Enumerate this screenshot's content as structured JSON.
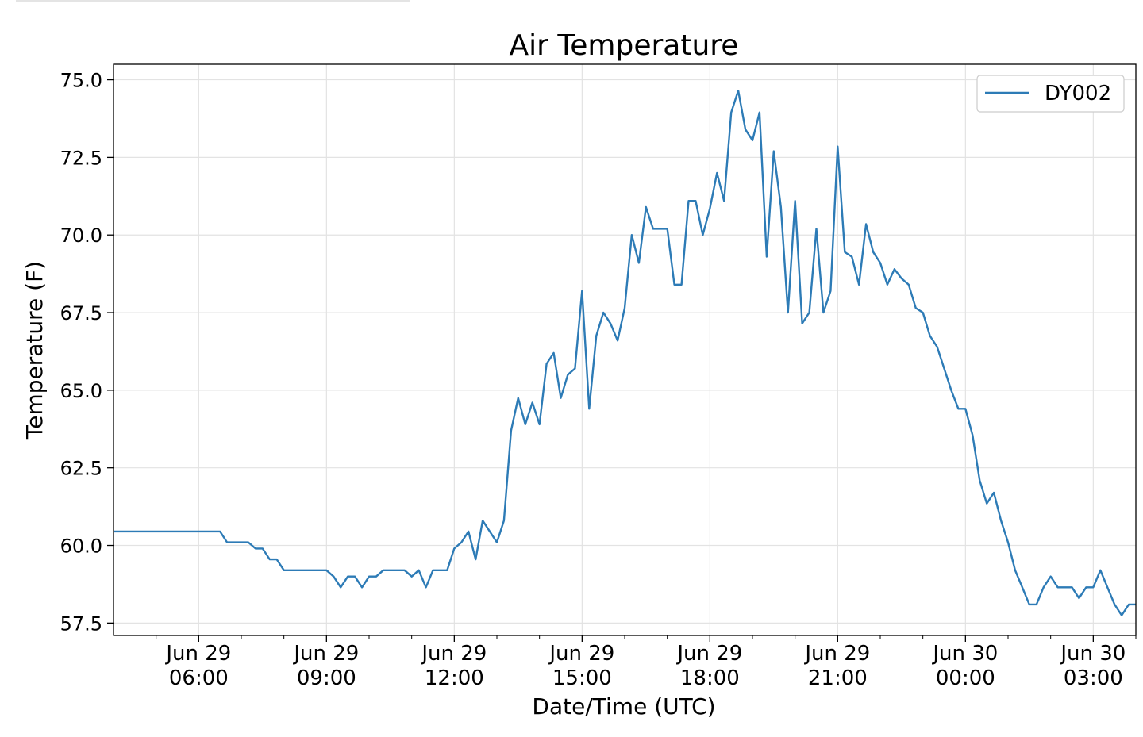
{
  "chart_data": {
    "type": "line",
    "title": "Air Temperature",
    "xlabel": "Date/Time (UTC)",
    "ylabel": "Temperature (F)",
    "ylim": [
      57.1,
      75.5
    ],
    "xlim": [
      "2020-06-29T04:00",
      "2020-06-30T04:00"
    ],
    "grid": true,
    "legend_position": "top-right",
    "yticks": [
      {
        "value": 57.5,
        "label": "57.5"
      },
      {
        "value": 60.0,
        "label": "60.0"
      },
      {
        "value": 62.5,
        "label": "62.5"
      },
      {
        "value": 65.0,
        "label": "65.0"
      },
      {
        "value": 67.5,
        "label": "67.5"
      },
      {
        "value": 70.0,
        "label": "70.0"
      },
      {
        "value": 72.5,
        "label": "72.5"
      },
      {
        "value": 75.0,
        "label": "75.0"
      }
    ],
    "xticks": [
      {
        "value": "2020-06-29T06:00",
        "line1": "Jun 29",
        "line2": "06:00"
      },
      {
        "value": "2020-06-29T09:00",
        "line1": "Jun 29",
        "line2": "09:00"
      },
      {
        "value": "2020-06-29T12:00",
        "line1": "Jun 29",
        "line2": "12:00"
      },
      {
        "value": "2020-06-29T15:00",
        "line1": "Jun 29",
        "line2": "15:00"
      },
      {
        "value": "2020-06-29T18:00",
        "line1": "Jun 29",
        "line2": "18:00"
      },
      {
        "value": "2020-06-29T21:00",
        "line1": "Jun 29",
        "line2": "21:00"
      },
      {
        "value": "2020-06-30T00:00",
        "line1": "Jun 30",
        "line2": "00:00"
      },
      {
        "value": "2020-06-30T03:00",
        "line1": "Jun 30",
        "line2": "03:00"
      }
    ],
    "xminorticks": [
      "2020-06-29T05:00",
      "2020-06-29T07:00",
      "2020-06-29T08:00",
      "2020-06-29T10:00",
      "2020-06-29T11:00",
      "2020-06-29T13:00",
      "2020-06-29T14:00",
      "2020-06-29T16:00",
      "2020-06-29T17:00",
      "2020-06-29T19:00",
      "2020-06-29T20:00",
      "2020-06-29T22:00",
      "2020-06-29T23:00",
      "2020-06-30T01:00",
      "2020-06-30T02:00",
      "2020-06-30T04:00"
    ],
    "series": [
      {
        "name": "DY002",
        "color": "#2d7bb6",
        "points": [
          [
            "2020-06-29T04:00",
            60.45
          ],
          [
            "2020-06-29T06:30",
            60.45
          ],
          [
            "2020-06-29T06:40",
            60.1
          ],
          [
            "2020-06-29T07:10",
            60.1
          ],
          [
            "2020-06-29T07:20",
            59.9
          ],
          [
            "2020-06-29T07:30",
            59.9
          ],
          [
            "2020-06-29T07:40",
            59.55
          ],
          [
            "2020-06-29T07:50",
            59.55
          ],
          [
            "2020-06-29T08:00",
            59.2
          ],
          [
            "2020-06-29T09:00",
            59.2
          ],
          [
            "2020-06-29T09:10",
            59.0
          ],
          [
            "2020-06-29T09:20",
            58.65
          ],
          [
            "2020-06-29T09:30",
            59.0
          ],
          [
            "2020-06-29T09:40",
            59.0
          ],
          [
            "2020-06-29T09:50",
            58.65
          ],
          [
            "2020-06-29T10:00",
            59.0
          ],
          [
            "2020-06-29T10:10",
            59.0
          ],
          [
            "2020-06-29T10:20",
            59.2
          ],
          [
            "2020-06-29T10:50",
            59.2
          ],
          [
            "2020-06-29T11:00",
            59.0
          ],
          [
            "2020-06-29T11:10",
            59.2
          ],
          [
            "2020-06-29T11:20",
            58.65
          ],
          [
            "2020-06-29T11:30",
            59.2
          ],
          [
            "2020-06-29T11:50",
            59.2
          ],
          [
            "2020-06-29T12:00",
            59.9
          ],
          [
            "2020-06-29T12:10",
            60.1
          ],
          [
            "2020-06-29T12:20",
            60.45
          ],
          [
            "2020-06-29T12:30",
            59.55
          ],
          [
            "2020-06-29T12:40",
            60.8
          ],
          [
            "2020-06-29T13:00",
            60.1
          ],
          [
            "2020-06-29T13:10",
            60.8
          ],
          [
            "2020-06-29T13:20",
            63.7
          ],
          [
            "2020-06-29T13:30",
            64.75
          ],
          [
            "2020-06-29T13:40",
            63.9
          ],
          [
            "2020-06-29T13:50",
            64.6
          ],
          [
            "2020-06-29T14:00",
            63.9
          ],
          [
            "2020-06-29T14:10",
            65.85
          ],
          [
            "2020-06-29T14:20",
            66.2
          ],
          [
            "2020-06-29T14:30",
            64.75
          ],
          [
            "2020-06-29T14:40",
            65.5
          ],
          [
            "2020-06-29T14:50",
            65.7
          ],
          [
            "2020-06-29T15:00",
            68.2
          ],
          [
            "2020-06-29T15:10",
            64.4
          ],
          [
            "2020-06-29T15:20",
            66.75
          ],
          [
            "2020-06-29T15:30",
            67.5
          ],
          [
            "2020-06-29T15:40",
            67.15
          ],
          [
            "2020-06-29T15:50",
            66.6
          ],
          [
            "2020-06-29T16:00",
            67.65
          ],
          [
            "2020-06-29T16:10",
            70.0
          ],
          [
            "2020-06-29T16:20",
            69.1
          ],
          [
            "2020-06-29T16:30",
            70.9
          ],
          [
            "2020-06-29T16:40",
            70.2
          ],
          [
            "2020-06-29T17:00",
            70.2
          ],
          [
            "2020-06-29T17:10",
            68.4
          ],
          [
            "2020-06-29T17:20",
            68.4
          ],
          [
            "2020-06-29T17:30",
            71.1
          ],
          [
            "2020-06-29T17:40",
            71.1
          ],
          [
            "2020-06-29T17:50",
            70.0
          ],
          [
            "2020-06-29T18:00",
            70.85
          ],
          [
            "2020-06-29T18:10",
            72.0
          ],
          [
            "2020-06-29T18:20",
            71.1
          ],
          [
            "2020-06-29T18:30",
            73.95
          ],
          [
            "2020-06-29T18:40",
            74.65
          ],
          [
            "2020-06-29T18:50",
            73.4
          ],
          [
            "2020-06-29T19:00",
            73.05
          ],
          [
            "2020-06-29T19:10",
            73.95
          ],
          [
            "2020-06-29T19:20",
            69.3
          ],
          [
            "2020-06-29T19:30",
            72.7
          ],
          [
            "2020-06-29T19:40",
            70.9
          ],
          [
            "2020-06-29T19:50",
            67.5
          ],
          [
            "2020-06-29T20:00",
            71.1
          ],
          [
            "2020-06-29T20:10",
            67.15
          ],
          [
            "2020-06-29T20:20",
            67.5
          ],
          [
            "2020-06-29T20:30",
            70.2
          ],
          [
            "2020-06-29T20:40",
            67.5
          ],
          [
            "2020-06-29T20:50",
            68.2
          ],
          [
            "2020-06-29T21:00",
            72.85
          ],
          [
            "2020-06-29T21:10",
            69.45
          ],
          [
            "2020-06-29T21:20",
            69.3
          ],
          [
            "2020-06-29T21:30",
            68.4
          ],
          [
            "2020-06-29T21:40",
            70.35
          ],
          [
            "2020-06-29T21:50",
            69.45
          ],
          [
            "2020-06-29T22:00",
            69.1
          ],
          [
            "2020-06-29T22:10",
            68.4
          ],
          [
            "2020-06-29T22:20",
            68.9
          ],
          [
            "2020-06-29T22:30",
            68.6
          ],
          [
            "2020-06-29T22:40",
            68.4
          ],
          [
            "2020-06-29T22:50",
            67.65
          ],
          [
            "2020-06-29T23:00",
            67.5
          ],
          [
            "2020-06-29T23:10",
            66.75
          ],
          [
            "2020-06-29T23:20",
            66.4
          ],
          [
            "2020-06-29T23:40",
            65.0
          ],
          [
            "2020-06-29T23:50",
            64.4
          ],
          [
            "2020-06-30T00:00",
            64.4
          ],
          [
            "2020-06-30T00:10",
            63.55
          ],
          [
            "2020-06-30T00:20",
            62.1
          ],
          [
            "2020-06-30T00:30",
            61.35
          ],
          [
            "2020-06-30T00:40",
            61.7
          ],
          [
            "2020-06-30T00:50",
            60.8
          ],
          [
            "2020-06-30T01:00",
            60.1
          ],
          [
            "2020-06-30T01:10",
            59.2
          ],
          [
            "2020-06-30T01:20",
            58.65
          ],
          [
            "2020-06-30T01:30",
            58.1
          ],
          [
            "2020-06-30T01:40",
            58.1
          ],
          [
            "2020-06-30T01:50",
            58.65
          ],
          [
            "2020-06-30T02:00",
            59.0
          ],
          [
            "2020-06-30T02:10",
            58.65
          ],
          [
            "2020-06-30T02:30",
            58.65
          ],
          [
            "2020-06-30T02:40",
            58.3
          ],
          [
            "2020-06-30T02:50",
            58.65
          ],
          [
            "2020-06-30T03:00",
            58.65
          ],
          [
            "2020-06-30T03:10",
            59.2
          ],
          [
            "2020-06-30T03:20",
            58.65
          ],
          [
            "2020-06-30T03:30",
            58.1
          ],
          [
            "2020-06-30T03:40",
            57.75
          ],
          [
            "2020-06-30T03:50",
            58.1
          ],
          [
            "2020-06-30T04:00",
            58.1
          ]
        ]
      }
    ]
  }
}
